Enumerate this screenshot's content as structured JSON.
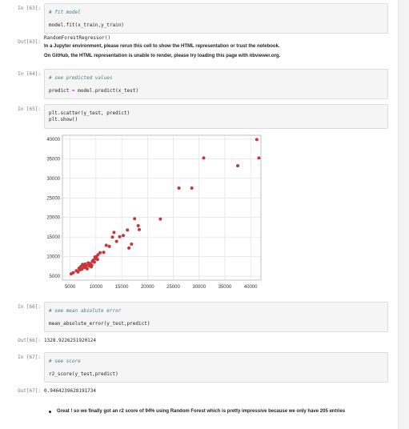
{
  "cells": [
    {
      "prompt": "In [63]:",
      "comment": "# fit model",
      "code": "model.fit(x_train,y_train)"
    },
    {
      "prompt": "In [64]:",
      "comment": "# see predicted values",
      "code_a": "predict ",
      "code_op": "=",
      "code_b": " model.predict(x_test)"
    },
    {
      "prompt": "In [65]:",
      "code_1": "plt.scatter(y_test, predict)",
      "code_2": "plt.show()"
    },
    {
      "prompt": "In [66]:",
      "comment": "# see mean absolute error",
      "code": "mean_absolute_error(y_test,predict)"
    },
    {
      "prompt": "In [67]:",
      "comment": "# see score",
      "code": "r2_score(y_test,predict)"
    }
  ],
  "outputs": {
    "out63_prompt": "Out[63]:",
    "out63_text": "RandomForestRegressor()",
    "out63_warn1": "In a Jupyter environment, please rerun this cell to show the HTML representation or trust the notebook.",
    "out63_warn2": "On GitHub, the HTML representation is unable to render, please try loading this page with nbviewer.org.",
    "out66_prompt": "Out[66]:",
    "out66_text": "1328.9226251920124",
    "out67_prompt": "Out[67]:",
    "out67_text": "0.9464239628191734"
  },
  "markdown": {
    "bullet": "Great ! so we finally got an r2 score of 94% using Random Forest which is pretty impressive because we only have 205 entries"
  },
  "chart_data": {
    "type": "scatter",
    "title": "",
    "xlabel": "",
    "ylabel": "",
    "xlim": [
      3500,
      42000
    ],
    "ylim": [
      4000,
      41000
    ],
    "x_ticks": [
      "5000",
      "10000",
      "15000",
      "20000",
      "25000",
      "30000",
      "35000",
      "40000"
    ],
    "y_ticks": [
      "5000",
      "10000",
      "15000",
      "20000",
      "25000",
      "30000",
      "35000",
      "40000"
    ],
    "x_tick_values": [
      5000,
      10000,
      15000,
      20000,
      25000,
      30000,
      35000,
      40000
    ],
    "y_tick_values": [
      5000,
      10000,
      15000,
      20000,
      25000,
      30000,
      35000,
      40000
    ],
    "grid": true,
    "color": "#c8343a",
    "series": [
      {
        "x": [
          5200,
          5600,
          6200,
          6500,
          6700,
          6900,
          7100,
          7300,
          7500,
          7700,
          7900,
          8100,
          8300,
          8500,
          8700,
          8900,
          9100,
          9300,
          9500,
          9700,
          9900,
          10100,
          10300,
          6800,
          7400,
          8000,
          8600,
          9200,
          9800,
          10400,
          10800,
          11500,
          12000,
          12600,
          13200,
          13500,
          14000,
          14600,
          15300,
          16100,
          16400,
          16900,
          17500,
          18200,
          18400,
          22500,
          26100,
          28600,
          30900,
          37500,
          41200,
          41600
        ],
        "y": [
          5600,
          5900,
          6400,
          6100,
          7000,
          6600,
          7500,
          6800,
          7900,
          7300,
          8100,
          7700,
          6900,
          8400,
          7600,
          8200,
          7400,
          8800,
          9100,
          8600,
          9500,
          10000,
          9300,
          7100,
          8000,
          7200,
          8300,
          7800,
          9900,
          10500,
          11000,
          11100,
          12900,
          12600,
          15000,
          16200,
          13900,
          15100,
          15400,
          16800,
          12200,
          13200,
          19700,
          17900,
          16900,
          19600,
          27500,
          27500,
          35200,
          33200,
          39900,
          35200
        ]
      }
    ]
  }
}
